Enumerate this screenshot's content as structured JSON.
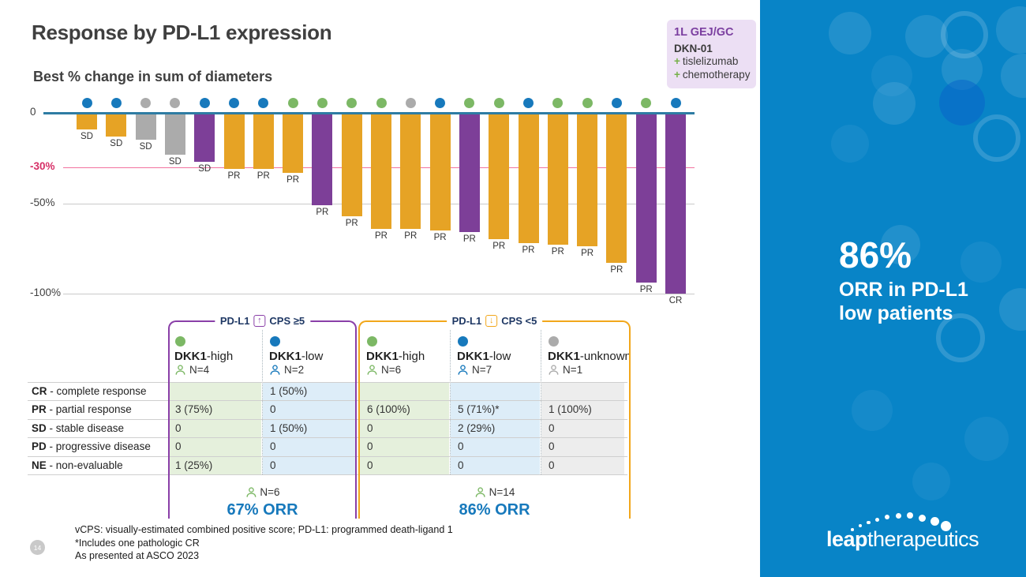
{
  "slide": {
    "title": "Response by PD-L1 expression",
    "subtitle": "Best % change in sum of diameters",
    "page_number": "14",
    "footnotes": [
      "vCPS: visually-estimated combined positive score; PD-L1: programmed death-ligand 1",
      "*Includes one pathologic CR",
      "As presented at ASCO 2023"
    ]
  },
  "badge": {
    "trial_line": "1L GEJ/GC",
    "drug": "DKN-01",
    "plus_sign": "+",
    "combo": [
      "tislelizumab",
      "chemotherapy"
    ]
  },
  "chart_data": {
    "type": "bar",
    "title": "Best % change in sum of diameters",
    "ylabel": "Best % change in sum of diameters",
    "ylim": [
      -100,
      0
    ],
    "grid": "horizontal lines at -30 (pink), -50 and -100 (gray)",
    "yticks": [
      {
        "label": "0",
        "value": 0
      },
      {
        "label": "-30%",
        "value": -30
      },
      {
        "label": "-50%",
        "value": -50
      },
      {
        "label": "-100%",
        "value": -100
      }
    ],
    "bars": [
      {
        "pct": -9,
        "label": "SD",
        "bar": "orange",
        "dot": "blue"
      },
      {
        "pct": -13,
        "label": "SD",
        "bar": "orange",
        "dot": "blue"
      },
      {
        "pct": -15,
        "label": "SD",
        "bar": "gray",
        "dot": "gray"
      },
      {
        "pct": -23,
        "label": "SD",
        "bar": "gray",
        "dot": "gray"
      },
      {
        "pct": -27,
        "label": "SD",
        "bar": "purple",
        "dot": "blue"
      },
      {
        "pct": -31,
        "label": "PR",
        "bar": "orange",
        "dot": "blue"
      },
      {
        "pct": -31,
        "label": "PR",
        "bar": "orange",
        "dot": "blue"
      },
      {
        "pct": -33,
        "label": "PR",
        "bar": "orange",
        "dot": "green"
      },
      {
        "pct": -51,
        "label": "PR",
        "bar": "purple",
        "dot": "green"
      },
      {
        "pct": -57,
        "label": "PR",
        "bar": "orange",
        "dot": "green"
      },
      {
        "pct": -64,
        "label": "PR",
        "bar": "orange",
        "dot": "green"
      },
      {
        "pct": -64,
        "label": "PR",
        "bar": "orange",
        "dot": "gray"
      },
      {
        "pct": -65,
        "label": "PR",
        "bar": "orange",
        "dot": "blue"
      },
      {
        "pct": -66,
        "label": "PR",
        "bar": "purple",
        "dot": "green"
      },
      {
        "pct": -70,
        "label": "PR",
        "bar": "orange",
        "dot": "green"
      },
      {
        "pct": -72,
        "label": "PR",
        "bar": "orange",
        "dot": "blue"
      },
      {
        "pct": -73,
        "label": "PR",
        "bar": "orange",
        "dot": "green"
      },
      {
        "pct": -74,
        "label": "PR",
        "bar": "orange",
        "dot": "green"
      },
      {
        "pct": -83,
        "label": "PR",
        "bar": "orange",
        "dot": "blue"
      },
      {
        "pct": -94,
        "label": "PR",
        "bar": "purple",
        "dot": "green"
      },
      {
        "pct": -100,
        "label": "CR",
        "bar": "purple",
        "dot": "blue"
      }
    ]
  },
  "table": {
    "groups": [
      {
        "pdl1": "PD-L1",
        "arrow": "up",
        "cps": "CPS ≥5",
        "footer_n": "N=6",
        "footer_orr": "67% ORR"
      },
      {
        "pdl1": "PD-L1",
        "arrow": "down",
        "cps": "CPS <5",
        "footer_n": "N=14",
        "footer_orr": "86% ORR"
      }
    ],
    "columns": [
      {
        "group": 0,
        "dot": "green",
        "label_bold": "DKK1",
        "label_rest": "-high",
        "n": "N=4"
      },
      {
        "group": 0,
        "dot": "blue",
        "label_bold": "DKK1",
        "label_rest": "-low",
        "n": "N=2"
      },
      {
        "group": 1,
        "dot": "green",
        "label_bold": "DKK1",
        "label_rest": "-high",
        "n": "N=6"
      },
      {
        "group": 1,
        "dot": "blue",
        "label_bold": "DKK1",
        "label_rest": "-low",
        "n": "N=7"
      },
      {
        "group": 1,
        "dot": "gray",
        "label_bold": "DKK1",
        "label_rest": "-unknown",
        "n": "N=1"
      }
    ],
    "rows": [
      {
        "abbr": "CR",
        "label": "complete response",
        "cells": [
          "",
          "1 (50%)",
          "",
          "",
          ""
        ]
      },
      {
        "abbr": "PR",
        "label": "partial response",
        "cells": [
          "3 (75%)",
          "0",
          "6 (100%)",
          "5 (71%)*",
          "1 (100%)"
        ]
      },
      {
        "abbr": "SD",
        "label": "stable disease",
        "cells": [
          "0",
          "1 (50%)",
          "0",
          "2 (29%)",
          "0"
        ]
      },
      {
        "abbr": "PD",
        "label": "progressive disease",
        "cells": [
          "0",
          "0",
          "0",
          "0",
          "0"
        ]
      },
      {
        "abbr": "NE",
        "label": "non-evaluable",
        "cells": [
          "1 (25%)",
          "0",
          "0",
          "0",
          "0"
        ]
      }
    ]
  },
  "sidebar": {
    "stat": "86%",
    "caption_line1": "ORR in PD-L1",
    "caption_line2": "low patients",
    "logo_bold": "leap",
    "logo_rest": "therapeutics"
  },
  "colors": {
    "bar_orange": "#E6A325",
    "bar_purple": "#7D3F98",
    "bar_gray": "#ABABAB",
    "dot_blue": "#1779BC",
    "dot_green": "#7CB865",
    "dot_gray": "#ABABAB",
    "axis_blue": "#2E7CA3",
    "line_pink": "#F2729F",
    "tick_pink": "#D62E66",
    "grid_gray": "#C9C9C9",
    "orr_blue": "#1779BC",
    "group1_border": "#8A3FA8",
    "group2_border": "#F2A71B",
    "navy": "#1F3864",
    "col_green_bg": "#E5F0DC",
    "col_blue_bg": "#DDEDF8",
    "col_gray_bg": "#EDEDED",
    "sidebar_blue": "#0884C7",
    "badge_bg": "#ECDFF4",
    "badge_purple": "#7B3FA0",
    "plus_green": "#76B04A"
  }
}
